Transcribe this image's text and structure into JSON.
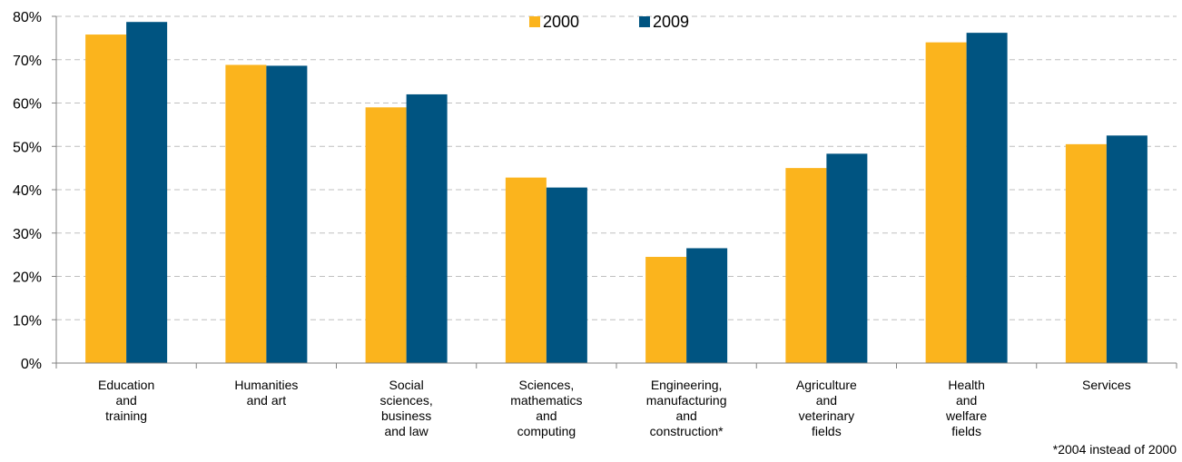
{
  "chart_data": {
    "type": "bar",
    "categories": [
      [
        "Education",
        "and",
        "training"
      ],
      [
        "Humanities",
        "and art"
      ],
      [
        "Social",
        "sciences,",
        "business",
        "and law"
      ],
      [
        "Sciences,",
        "mathematics",
        "and",
        "computing"
      ],
      [
        "Engineering,",
        "manufacturing",
        "and",
        "construction*"
      ],
      [
        "Agriculture",
        "and",
        "veterinary",
        "fields"
      ],
      [
        "Health",
        "and",
        "welfare",
        "fields"
      ],
      [
        "Services"
      ]
    ],
    "series": [
      {
        "name": "2000",
        "color": "#FBB41D",
        "values": [
          75.8,
          68.8,
          59.0,
          42.8,
          24.5,
          45.0,
          74.0,
          50.5
        ]
      },
      {
        "name": "2009",
        "color": "#005481",
        "values": [
          78.7,
          68.6,
          62.0,
          40.5,
          26.5,
          48.3,
          76.2,
          52.5
        ]
      }
    ],
    "yticks": [
      "0%",
      "10%",
      "20%",
      "30%",
      "40%",
      "50%",
      "60%",
      "70%",
      "80%"
    ],
    "ylim": [
      0,
      80
    ],
    "grid": true,
    "legend_position": "top-center",
    "footnote": "*2004 instead of 2000"
  }
}
